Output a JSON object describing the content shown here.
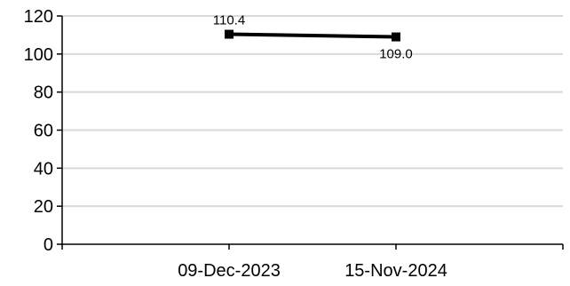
{
  "chart_data": {
    "type": "line",
    "title": "",
    "xlabel": "",
    "ylabel": "",
    "categories": [
      "09-Dec-2023",
      "15-Nov-2024"
    ],
    "series": [
      {
        "values": [
          110.4,
          109.0
        ],
        "data_labels": [
          "110.4",
          "109.0"
        ],
        "color": "#000000",
        "marker": "square"
      }
    ],
    "ylim": [
      0,
      120
    ],
    "yticks": [
      0,
      20,
      40,
      60,
      80,
      100,
      120
    ],
    "ytick_labels": [
      "0",
      "20",
      "40",
      "60",
      "80",
      "100",
      "120"
    ],
    "grid": true,
    "grid_axis": "y",
    "grid_color": "#d9d9d9",
    "legend": "none"
  }
}
